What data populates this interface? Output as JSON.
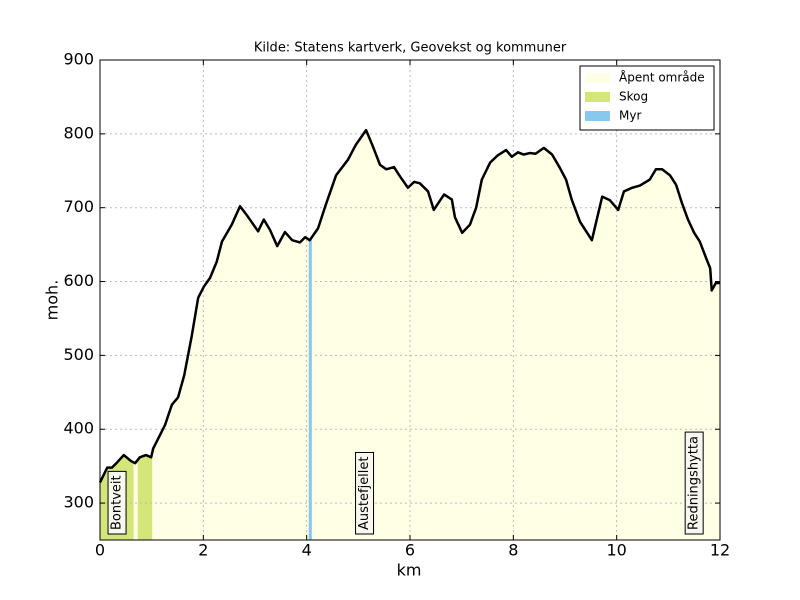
{
  "chart_data": {
    "type": "area-profile",
    "title": "Kilde: Statens kartverk, Geovekst og kommuner",
    "x_label": "km",
    "y_label": "moh.",
    "xlim": [
      0,
      12
    ],
    "ylim": [
      250,
      900
    ],
    "xticks": [
      0,
      2,
      4,
      6,
      8,
      10,
      12
    ],
    "yticks": [
      300,
      400,
      500,
      600,
      700,
      800,
      900
    ],
    "grid": true,
    "legend": "upper right",
    "series": [
      {
        "name": "Åpent område",
        "color": "#ffffe6",
        "line_color": "#000000",
        "x": [
          0,
          0.14,
          0.23,
          0.33,
          0.46,
          0.6,
          0.68,
          0.77,
          0.89,
          0.99,
          1.03,
          1.16,
          1.26,
          1.39,
          1.51,
          1.63,
          1.78,
          1.9,
          2.01,
          2.13,
          2.26,
          2.36,
          2.55,
          2.71,
          2.83,
          2.94,
          3.06,
          3.17,
          3.29,
          3.43,
          3.58,
          3.72,
          3.87,
          3.97,
          4.06,
          4.22,
          4.37,
          4.57,
          4.8,
          4.95,
          5.15,
          5.27,
          5.42,
          5.54,
          5.69,
          5.81,
          5.96,
          6.08,
          6.19,
          6.35,
          6.46,
          6.66,
          6.81,
          6.87,
          7.01,
          7.16,
          7.28,
          7.39,
          7.55,
          7.7,
          7.86,
          7.97,
          8.09,
          8.2,
          8.32,
          8.43,
          8.59,
          8.75,
          8.9,
          9.02,
          9.13,
          9.29,
          9.52,
          9.72,
          9.87,
          10.03,
          10.14,
          10.3,
          10.45,
          10.64,
          10.76,
          10.88,
          11.03,
          11.15,
          11.26,
          11.38,
          11.5,
          11.61,
          11.73,
          11.81,
          11.84,
          11.92,
          12
        ],
        "values": [
          328,
          348,
          348,
          355,
          365,
          357,
          354,
          362,
          365,
          362,
          374,
          392,
          406,
          433,
          443,
          473,
          528,
          578,
          593,
          605,
          627,
          654,
          677,
          702,
          691,
          680,
          668,
          684,
          670,
          648,
          667,
          656,
          653,
          660,
          656,
          672,
          704,
          744,
          765,
          785,
          805,
          785,
          758,
          752,
          755,
          742,
          727,
          735,
          733,
          722,
          697,
          718,
          711,
          687,
          666,
          677,
          700,
          738,
          761,
          771,
          778,
          769,
          775,
          772,
          774,
          773,
          781,
          772,
          754,
          738,
          711,
          681,
          656,
          715,
          710,
          697,
          722,
          727,
          730,
          738,
          752,
          752,
          744,
          731,
          707,
          684,
          666,
          654,
          632,
          618,
          588,
          598,
          598
        ]
      }
    ],
    "regions": [
      {
        "name": "Skog",
        "color": "#d4e67a",
        "ranges": [
          [
            0,
            0.65
          ],
          [
            0.73,
            1.01
          ]
        ]
      },
      {
        "name": "Myr",
        "color": "#88c8ee",
        "ranges": [
          [
            4.04,
            4.1
          ]
        ]
      }
    ],
    "annotations": [
      {
        "text": "Bontveit",
        "x": 0.33
      },
      {
        "text": "Austefjellet",
        "x": 5.12
      },
      {
        "text": "Redningshytta",
        "x": 11.5
      }
    ]
  }
}
